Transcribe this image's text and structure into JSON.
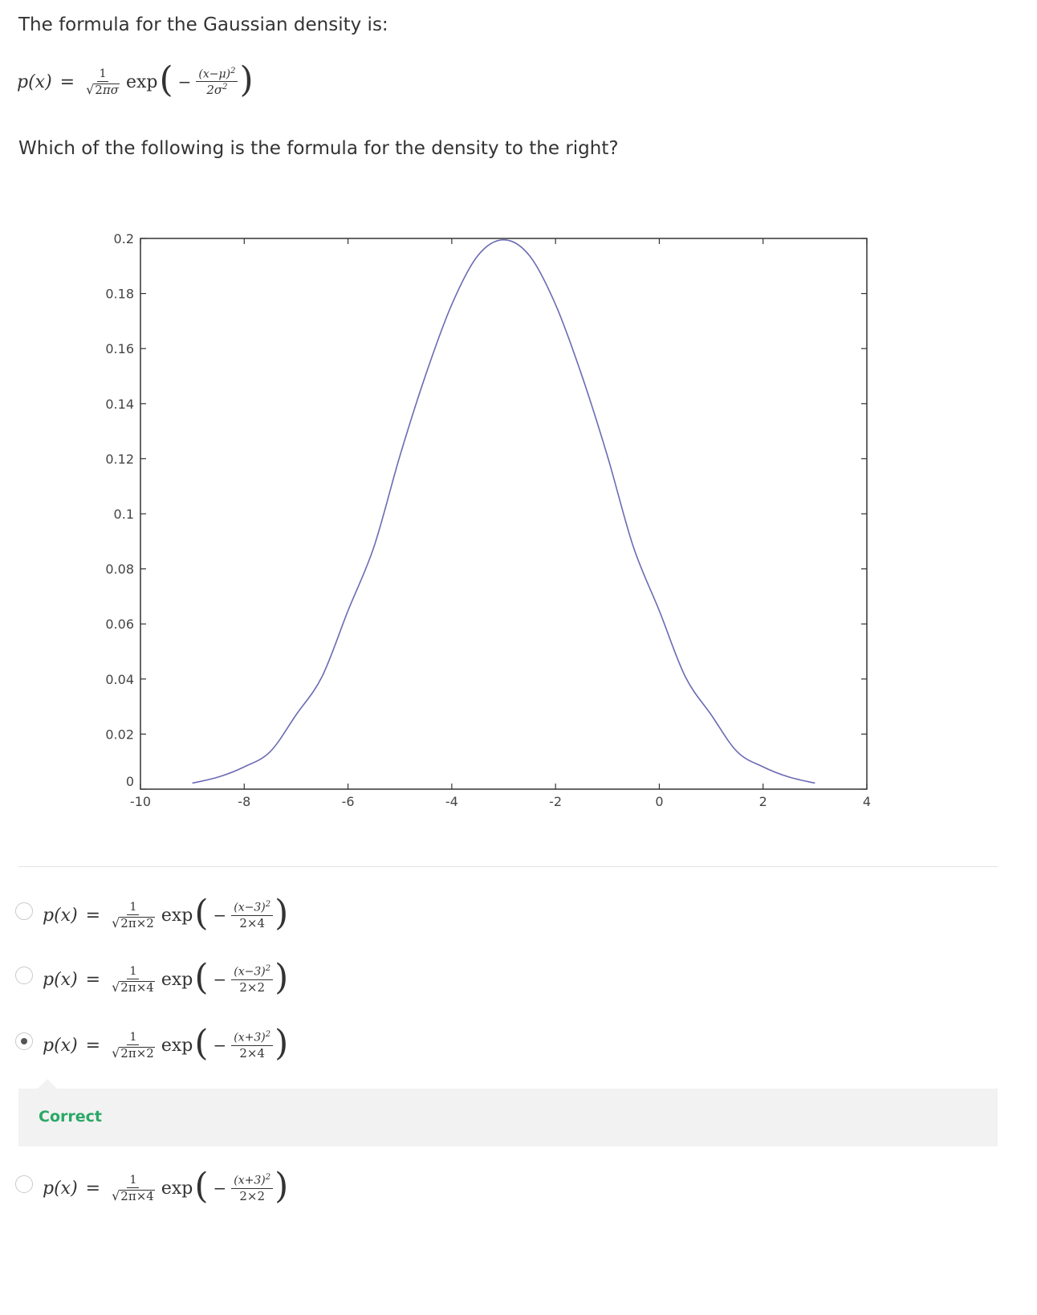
{
  "question": {
    "intro": "The formula for the Gaussian density is:",
    "formula": {
      "lhs": "p(x)",
      "eq": "=",
      "coef_num": "1",
      "coef_den_pre": "2",
      "coef_den_sym": "πσ",
      "exp": "exp",
      "minus": "−",
      "exp_num": "(x−μ)",
      "exp_num_sup": "2",
      "exp_den": "2σ",
      "exp_den_sup": "2"
    },
    "prompt": "Which of the following is the formula for the density to the right?"
  },
  "chart_data": {
    "type": "line",
    "xlim": [
      -10,
      4
    ],
    "ylim": [
      0,
      0.2
    ],
    "x_ticks": [
      "-10",
      "-8",
      "-6",
      "-4",
      "-2",
      "0",
      "2",
      "4"
    ],
    "y_ticks": [
      "0",
      "0.02",
      "0.04",
      "0.06",
      "0.08",
      "0.1",
      "0.12",
      "0.14",
      "0.16",
      "0.18",
      "0.2"
    ],
    "series": [
      {
        "color": "#6b6bb4",
        "x": [
          -9,
          -8.5,
          -8,
          -7.5,
          -7,
          -6.5,
          -6,
          -5.5,
          -5,
          -4.5,
          -4,
          -3.5,
          -3,
          -2.5,
          -2,
          -1.5,
          -1,
          -0.5,
          0,
          0.5,
          1,
          1.5,
          2,
          2.5,
          3
        ],
        "y": [
          0.0022,
          0.0044,
          0.0081,
          0.0136,
          0.027,
          0.0409,
          0.0648,
          0.088,
          0.121,
          0.1506,
          0.176,
          0.1937,
          0.1995,
          0.1937,
          0.176,
          0.1506,
          0.121,
          0.088,
          0.0648,
          0.0409,
          0.027,
          0.0136,
          0.0081,
          0.0044,
          0.0022
        ]
      }
    ],
    "grid": false
  },
  "options": [
    {
      "lhs": "p(x)",
      "eq": "=",
      "coef_num": "1",
      "coef_den": "2π×2",
      "exp": "exp",
      "minus": "−",
      "exp_num": "(x−3)",
      "exp_num_sup": "2",
      "exp_den": "2×4",
      "selected": false
    },
    {
      "lhs": "p(x)",
      "eq": "=",
      "coef_num": "1",
      "coef_den": "2π×4",
      "exp": "exp",
      "minus": "−",
      "exp_num": "(x−3)",
      "exp_num_sup": "2",
      "exp_den": "2×2",
      "selected": false
    },
    {
      "lhs": "p(x)",
      "eq": "=",
      "coef_num": "1",
      "coef_den": "2π×2",
      "exp": "exp",
      "minus": "−",
      "exp_num": "(x+3)",
      "exp_num_sup": "2",
      "exp_den": "2×4",
      "selected": true
    },
    {
      "lhs": "p(x)",
      "eq": "=",
      "coef_num": "1",
      "coef_den": "2π×4",
      "exp": "exp",
      "minus": "−",
      "exp_num": "(x+3)",
      "exp_num_sup": "2",
      "exp_den": "2×2",
      "selected": false
    }
  ],
  "feedback": {
    "label": "Correct",
    "color": "#2aa866"
  }
}
